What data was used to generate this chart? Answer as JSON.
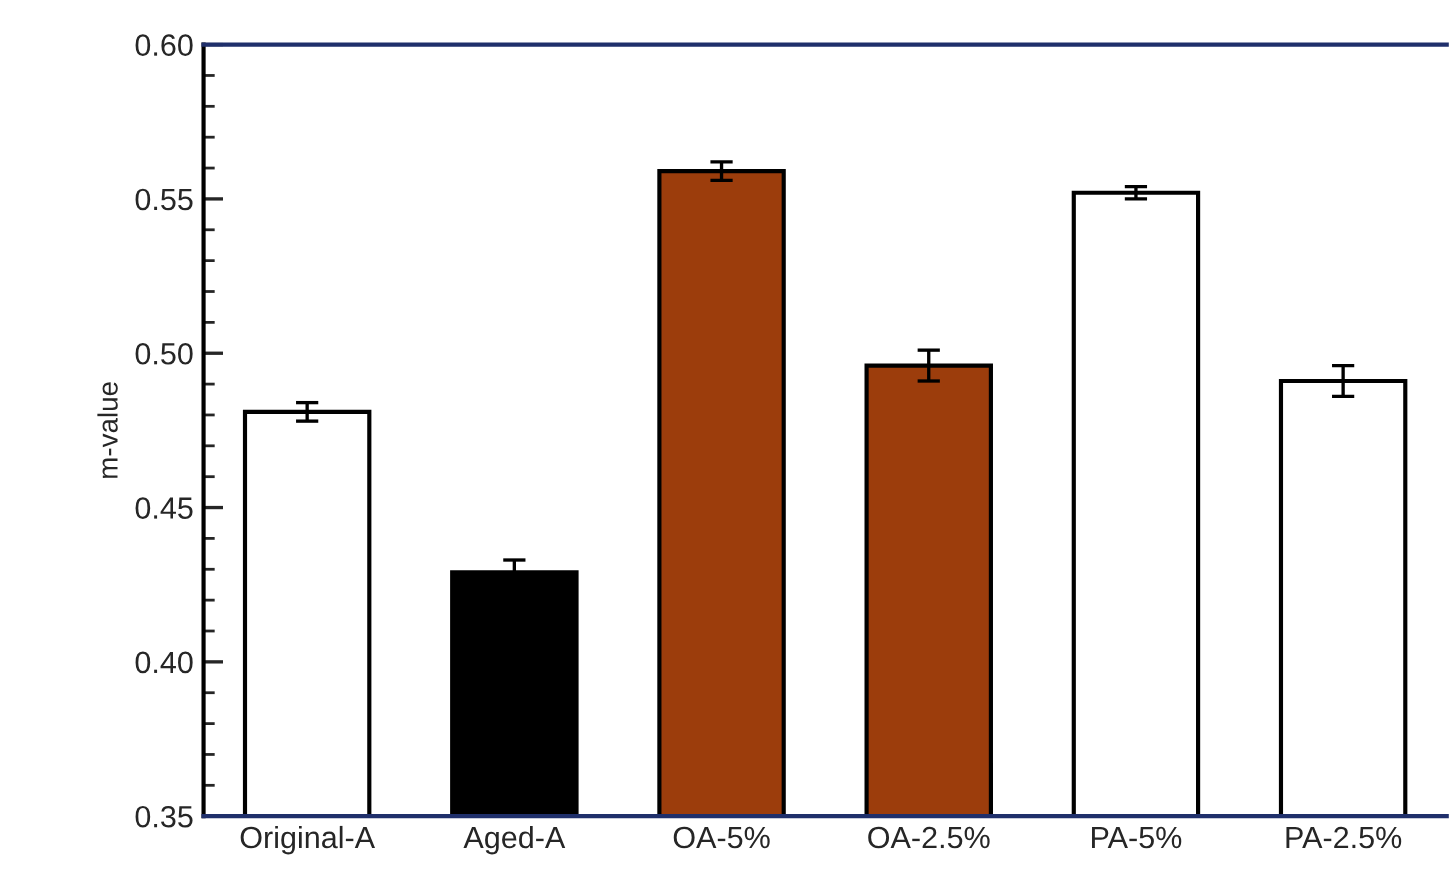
{
  "chart_data": {
    "type": "bar",
    "ylabel": "m-value",
    "categories": [
      "Original-A",
      "Aged-A",
      "OA-5%",
      "OA-2.5%",
      "PA-5%",
      "PA-2.5%"
    ],
    "values": [
      0.481,
      0.429,
      0.559,
      0.496,
      0.552,
      0.491
    ],
    "errors": [
      0.003,
      0.004,
      0.003,
      0.005,
      0.002,
      0.005
    ],
    "colors": [
      "#ffffff",
      "#000000",
      "#9c3d0c",
      "#9c3d0c",
      "#ffffff",
      "#ffffff"
    ],
    "ylim": [
      0.35,
      0.6
    ],
    "yticks": [
      {
        "value": 0.35,
        "label": "0.35"
      },
      {
        "value": 0.4,
        "label": "0.40"
      },
      {
        "value": 0.45,
        "label": "0.45"
      },
      {
        "value": 0.5,
        "label": "0.50"
      },
      {
        "value": 0.55,
        "label": "0.55"
      },
      {
        "value": 0.6,
        "label": "0.60"
      }
    ],
    "grid": false,
    "legend": false
  }
}
